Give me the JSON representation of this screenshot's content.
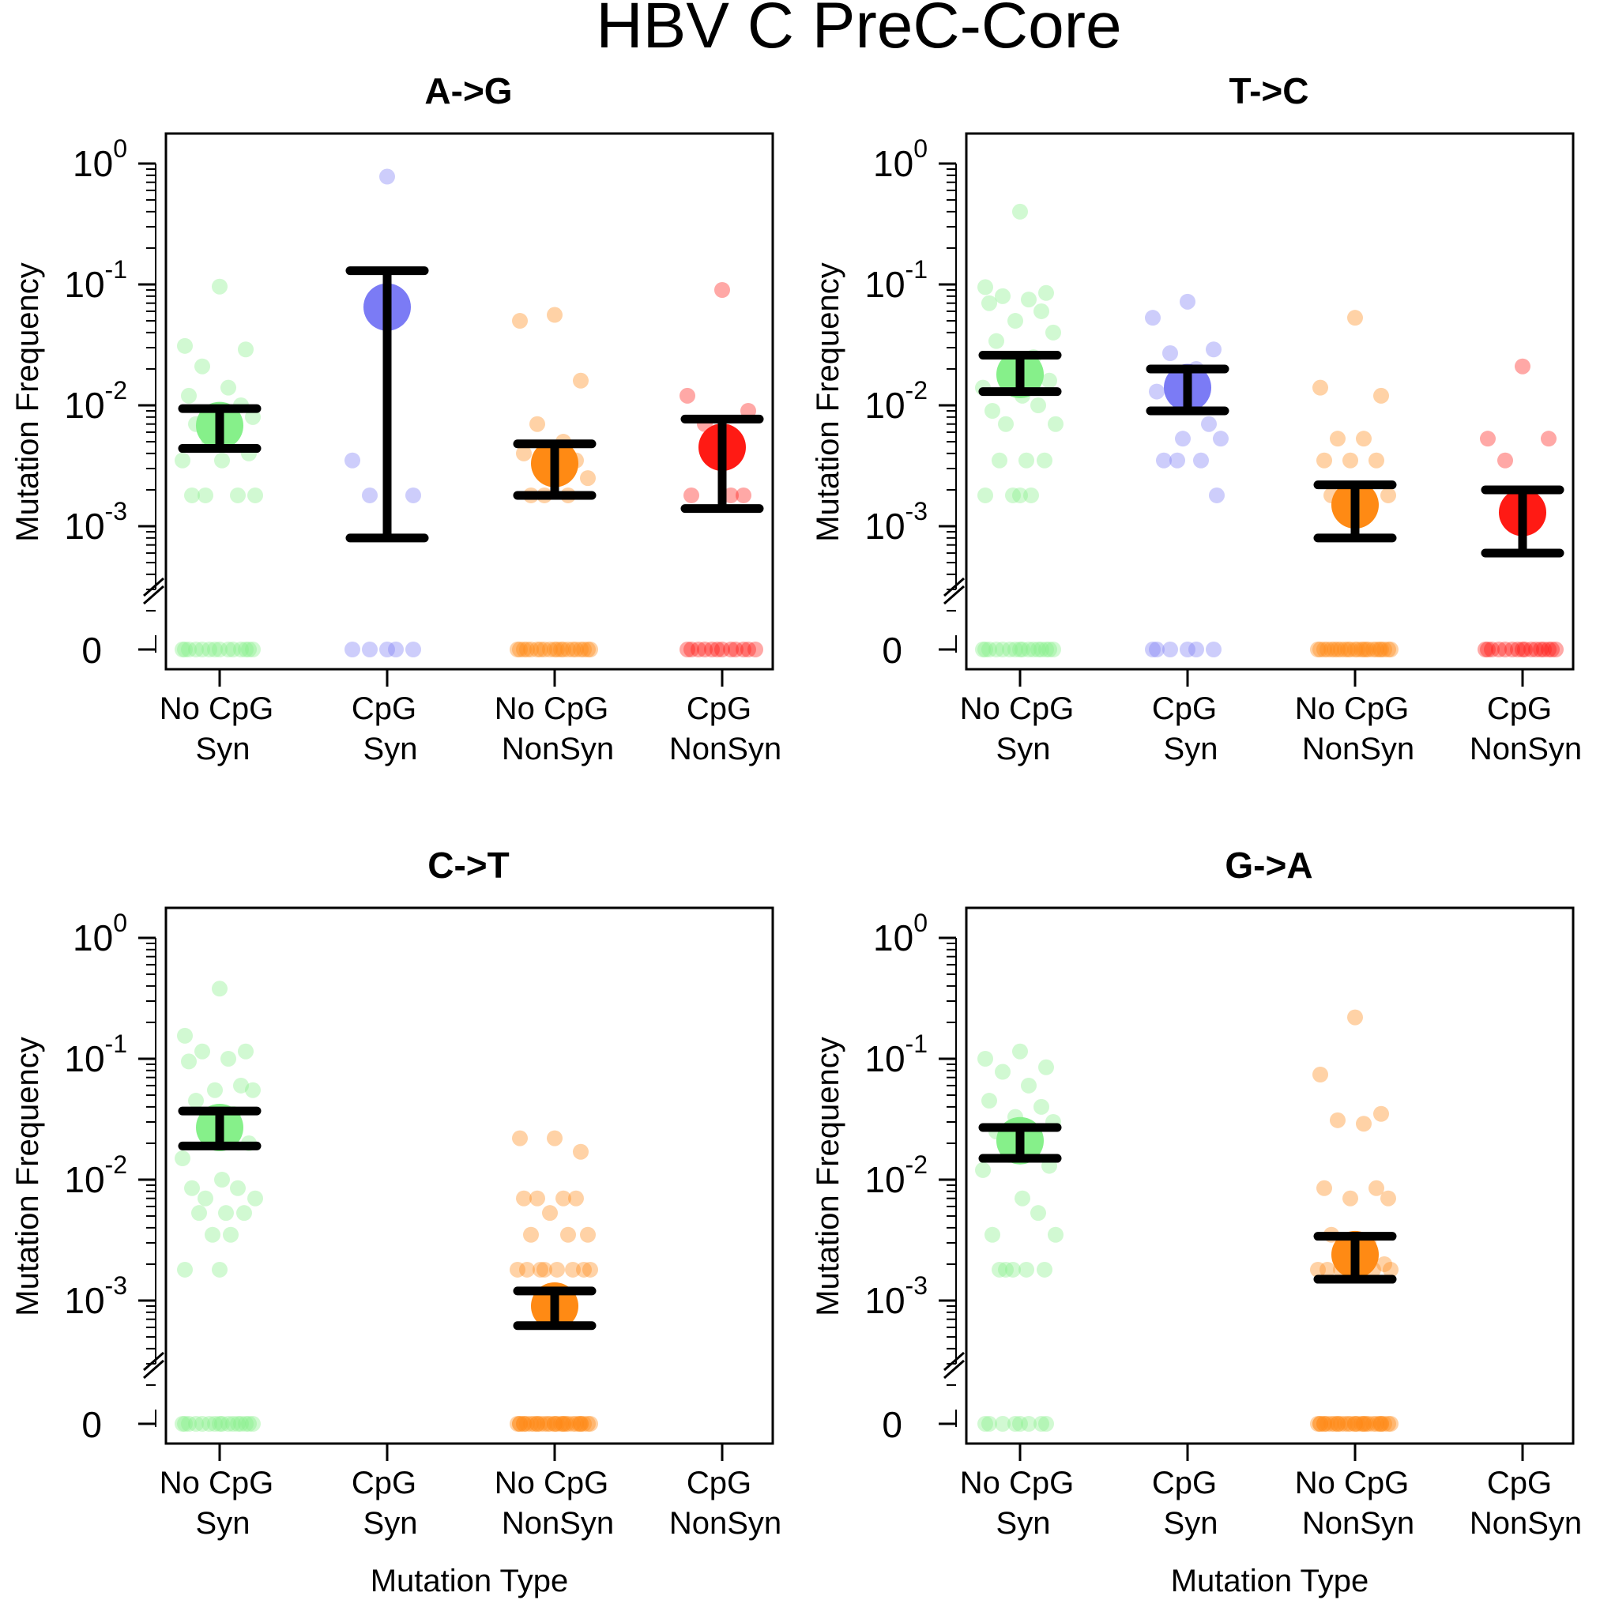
{
  "figure": {
    "title": "HBV C PreC-Core"
  },
  "colors": {
    "No CpG Syn": "#86f08a",
    "CpG Syn": "#7b7bf5",
    "No CpG NonSyn": "#ff8a14",
    "CpG NonSyn": "#ff1a14",
    "errorbar": "#000000"
  },
  "chart_data": [
    {
      "type": "scatter",
      "title": "A->G",
      "ylabel": "Mutation Frequency",
      "xlabel": "",
      "yscale": "log with zero break",
      "ylim": [
        0.0003,
        1
      ],
      "categories": [
        {
          "line1": "No CpG",
          "line2": "Syn",
          "key": "No CpG Syn",
          "mean": 0.0068,
          "lower": 0.0044,
          "upper": 0.0094,
          "points": [
            0.096,
            0.031,
            0.029,
            0.021,
            0.014,
            0.012,
            0.01,
            0.009,
            0.008,
            0.007,
            0.006,
            0.005,
            0.004,
            0.0035,
            0.0035,
            0.0018,
            0.0018,
            0.0018,
            0.0018
          ],
          "zeros": 14
        },
        {
          "line1": "CpG",
          "line2": "Syn",
          "key": "CpG Syn",
          "mean": 0.065,
          "lower": 0.0008,
          "upper": 0.13,
          "points": [
            0.78,
            0.0035,
            0.0018,
            0.0018
          ],
          "zeros": 5
        },
        {
          "line1": "No CpG",
          "line2": "NonSyn",
          "key": "No CpG NonSyn",
          "mean": 0.0033,
          "lower": 0.0018,
          "upper": 0.0048,
          "points": [
            0.056,
            0.05,
            0.016,
            0.007,
            0.005,
            0.004,
            0.0035,
            0.003,
            0.0025,
            0.0018,
            0.0018,
            0.0018
          ],
          "zeros": 20
        },
        {
          "line1": "CpG",
          "line2": "NonSyn",
          "key": "CpG NonSyn",
          "mean": 0.0045,
          "lower": 0.0014,
          "upper": 0.0077,
          "points": [
            0.09,
            0.012,
            0.009,
            0.007,
            0.0018,
            0.0018,
            0.0018
          ],
          "zeros": 12
        }
      ]
    },
    {
      "type": "scatter",
      "title": "T->C",
      "ylabel": "Mutation Frequency",
      "xlabel": "",
      "yscale": "log with zero break",
      "ylim": [
        0.0003,
        1
      ],
      "categories": [
        {
          "line1": "No CpG",
          "line2": "Syn",
          "key": "No CpG Syn",
          "mean": 0.018,
          "lower": 0.013,
          "upper": 0.026,
          "points": [
            0.4,
            0.095,
            0.085,
            0.08,
            0.075,
            0.07,
            0.06,
            0.05,
            0.04,
            0.034,
            0.025,
            0.02,
            0.016,
            0.014,
            0.012,
            0.01,
            0.009,
            0.007,
            0.007,
            0.0035,
            0.0035,
            0.0035,
            0.0018,
            0.0018,
            0.0018,
            0.0018
          ],
          "zeros": 16
        },
        {
          "line1": "CpG",
          "line2": "Syn",
          "key": "CpG Syn",
          "mean": 0.014,
          "lower": 0.009,
          "upper": 0.02,
          "points": [
            0.072,
            0.053,
            0.029,
            0.027,
            0.02,
            0.013,
            0.007,
            0.0053,
            0.0053,
            0.0035,
            0.0035,
            0.0035,
            0.0018
          ],
          "zeros": 6
        },
        {
          "line1": "No CpG",
          "line2": "NonSyn",
          "key": "No CpG NonSyn",
          "mean": 0.0015,
          "lower": 0.0008,
          "upper": 0.0022,
          "points": [
            0.053,
            0.014,
            0.012,
            0.0053,
            0.0053,
            0.0035,
            0.0035,
            0.0035,
            0.0018,
            0.0018
          ],
          "zeros": 24
        },
        {
          "line1": "CpG",
          "line2": "NonSyn",
          "key": "CpG NonSyn",
          "mean": 0.0013,
          "lower": 0.0006,
          "upper": 0.002,
          "points": [
            0.021,
            0.0053,
            0.0053,
            0.0035
          ],
          "zeros": 16
        }
      ]
    },
    {
      "type": "scatter",
      "title": "C->T",
      "ylabel": "Mutation Frequency",
      "xlabel": "Mutation Type",
      "yscale": "log with zero break",
      "ylim": [
        0.0003,
        1
      ],
      "categories": [
        {
          "line1": "No CpG",
          "line2": "Syn",
          "key": "No CpG Syn",
          "mean": 0.027,
          "lower": 0.019,
          "upper": 0.037,
          "points": [
            0.38,
            0.155,
            0.115,
            0.115,
            0.1,
            0.095,
            0.06,
            0.055,
            0.055,
            0.045,
            0.035,
            0.03,
            0.02,
            0.015,
            0.01,
            0.0085,
            0.0085,
            0.007,
            0.007,
            0.0053,
            0.0053,
            0.0053,
            0.0035,
            0.0035,
            0.0018,
            0.0018
          ],
          "zeros": 16
        },
        {
          "line1": "CpG",
          "line2": "Syn",
          "key": "CpG Syn",
          "points": [],
          "zeros": 0
        },
        {
          "line1": "No CpG",
          "line2": "NonSyn",
          "key": "No CpG NonSyn",
          "mean": 0.0009,
          "lower": 0.00062,
          "upper": 0.0012,
          "points": [
            0.022,
            0.022,
            0.017,
            0.007,
            0.007,
            0.007,
            0.007,
            0.0053,
            0.0035,
            0.0035,
            0.0035,
            0.0018,
            0.0018,
            0.0018,
            0.0018,
            0.0018,
            0.0018,
            0.0018,
            0.0018
          ],
          "zeros": 30
        },
        {
          "line1": "CpG",
          "line2": "NonSyn",
          "key": "CpG NonSyn",
          "points": [],
          "zeros": 0
        }
      ]
    },
    {
      "type": "scatter",
      "title": "G->A",
      "ylabel": "Mutation Frequency",
      "xlabel": "Mutation Type",
      "yscale": "log with zero break",
      "ylim": [
        0.0003,
        1
      ],
      "categories": [
        {
          "line1": "No CpG",
          "line2": "Syn",
          "key": "No CpG Syn",
          "mean": 0.021,
          "lower": 0.015,
          "upper": 0.027,
          "points": [
            0.115,
            0.1,
            0.085,
            0.078,
            0.06,
            0.045,
            0.04,
            0.033,
            0.03,
            0.025,
            0.02,
            0.016,
            0.013,
            0.012,
            0.007,
            0.0053,
            0.0035,
            0.0035,
            0.0018,
            0.0018,
            0.0018,
            0.0018,
            0.0018
          ],
          "zeros": 8
        },
        {
          "line1": "CpG",
          "line2": "Syn",
          "key": "CpG Syn",
          "points": [],
          "zeros": 0
        },
        {
          "line1": "No CpG",
          "line2": "NonSyn",
          "key": "No CpG NonSyn",
          "mean": 0.0024,
          "lower": 0.0015,
          "upper": 0.0034,
          "points": [
            0.22,
            0.074,
            0.035,
            0.031,
            0.029,
            0.0085,
            0.0085,
            0.007,
            0.007,
            0.0035,
            0.003,
            0.0025,
            0.002,
            0.0018,
            0.0018,
            0.0018,
            0.0018,
            0.0018,
            0.0018
          ],
          "zeros": 30
        },
        {
          "line1": "CpG",
          "line2": "NonSyn",
          "key": "CpG NonSyn",
          "points": [],
          "zeros": 0
        }
      ]
    }
  ]
}
